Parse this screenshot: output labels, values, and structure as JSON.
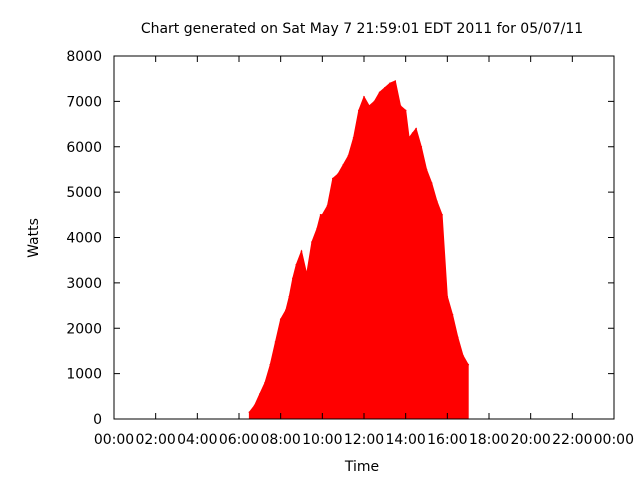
{
  "chart_data": {
    "type": "area",
    "title": "Chart generated on Sat May  7 21:59:01 EDT 2011 for 05/07/11",
    "xlabel": "Time",
    "ylabel": "Watts",
    "xlim": [
      "00:00",
      "24:00"
    ],
    "ylim": [
      0,
      8000
    ],
    "x_ticks": [
      "00:00",
      "02:00",
      "04:00",
      "06:00",
      "08:00",
      "10:00",
      "12:00",
      "14:00",
      "16:00",
      "18:00",
      "20:00",
      "22:00",
      "00:00"
    ],
    "y_ticks": [
      "0",
      "1000",
      "2000",
      "3000",
      "4000",
      "5000",
      "6000",
      "7000",
      "8000"
    ],
    "grid": false,
    "legend": "none",
    "color": "#ff0000",
    "series": [
      {
        "x": [
          "06:30",
          "06:45",
          "07:00",
          "07:15",
          "07:30",
          "07:45",
          "08:00",
          "08:15",
          "08:25",
          "08:35",
          "08:45",
          "09:00",
          "09:15",
          "09:30",
          "09:45",
          "09:55",
          "10:00",
          "10:15",
          "10:30",
          "10:45",
          "11:00",
          "11:15",
          "11:30",
          "11:45",
          "12:00",
          "12:15",
          "12:30",
          "12:45",
          "13:00",
          "13:15",
          "13:30",
          "13:45",
          "14:00",
          "14:10",
          "14:20",
          "14:30",
          "14:45",
          "15:00",
          "15:15",
          "15:30",
          "15:45",
          "16:00",
          "16:15",
          "16:30",
          "16:45",
          "17:00"
        ],
        "y": [
          150,
          300,
          550,
          800,
          1200,
          1700,
          2200,
          2400,
          2700,
          3100,
          3400,
          3700,
          3200,
          3900,
          4200,
          4500,
          4500,
          4700,
          5300,
          5400,
          5600,
          5800,
          6200,
          6800,
          7100,
          6900,
          7000,
          7200,
          7300,
          7400,
          7450,
          6900,
          6800,
          6200,
          6300,
          6400,
          6000,
          5500,
          5200,
          4800,
          4500,
          2700,
          2300,
          1800,
          1400,
          1200
        ]
      }
    ]
  }
}
